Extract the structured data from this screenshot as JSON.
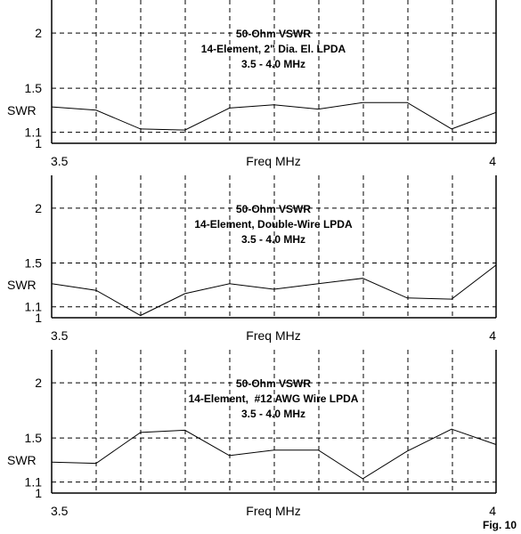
{
  "figure_label": "Fig. 10",
  "chart_data": [
    {
      "type": "line",
      "title": "50-Ohm VSWR",
      "subtitle": [
        "14-Element, 2\" Dia. El. LPDA",
        "3.5 - 4.0 MHz"
      ],
      "xlabel": "Freq MHz",
      "ylabel": "SWR",
      "xlim": [
        3.5,
        4.0
      ],
      "ylim": [
        1.0,
        2.3
      ],
      "xtick_labels": [
        "3.5",
        "4"
      ],
      "ytick_labels": [
        "1",
        "1.1",
        "1.5",
        "2"
      ],
      "yticks": [
        1.0,
        1.1,
        1.5,
        2.0
      ],
      "grid": true,
      "x": [
        3.5,
        3.55,
        3.6,
        3.65,
        3.7,
        3.75,
        3.8,
        3.85,
        3.9,
        3.95,
        4.0
      ],
      "values": [
        1.33,
        1.3,
        1.13,
        1.12,
        1.32,
        1.35,
        1.31,
        1.37,
        1.37,
        1.13,
        1.28
      ]
    },
    {
      "type": "line",
      "title": "50-Ohm VSWR",
      "subtitle": [
        "14-Element, Double-Wire LPDA",
        "3.5 - 4.0 MHz"
      ],
      "xlabel": "Freq MHz",
      "ylabel": "SWR",
      "xlim": [
        3.5,
        4.0
      ],
      "ylim": [
        1.0,
        2.3
      ],
      "xtick_labels": [
        "3.5",
        "4"
      ],
      "ytick_labels": [
        "1",
        "1.1",
        "1.5",
        "2"
      ],
      "yticks": [
        1.0,
        1.1,
        1.5,
        2.0
      ],
      "grid": true,
      "x": [
        3.5,
        3.55,
        3.6,
        3.65,
        3.7,
        3.75,
        3.8,
        3.85,
        3.9,
        3.95,
        4.0
      ],
      "values": [
        1.31,
        1.25,
        1.02,
        1.22,
        1.31,
        1.26,
        1.31,
        1.36,
        1.18,
        1.17,
        1.48
      ]
    },
    {
      "type": "line",
      "title": "50-Ohm VSWR",
      "subtitle": [
        "14-Element,  #12 AWG Wire LPDA",
        "3.5 - 4.0 MHz"
      ],
      "xlabel": "Freq MHz",
      "ylabel": "SWR",
      "xlim": [
        3.5,
        4.0
      ],
      "ylim": [
        1.0,
        2.3
      ],
      "xtick_labels": [
        "3.5",
        "4"
      ],
      "ytick_labels": [
        "1",
        "1.1",
        "1.5",
        "2"
      ],
      "yticks": [
        1.0,
        1.1,
        1.5,
        2.0
      ],
      "grid": true,
      "x": [
        3.5,
        3.55,
        3.6,
        3.65,
        3.7,
        3.75,
        3.8,
        3.85,
        3.9,
        3.95,
        4.0
      ],
      "values": [
        1.28,
        1.27,
        1.55,
        1.57,
        1.34,
        1.39,
        1.39,
        1.13,
        1.38,
        1.58,
        1.44
      ]
    }
  ]
}
